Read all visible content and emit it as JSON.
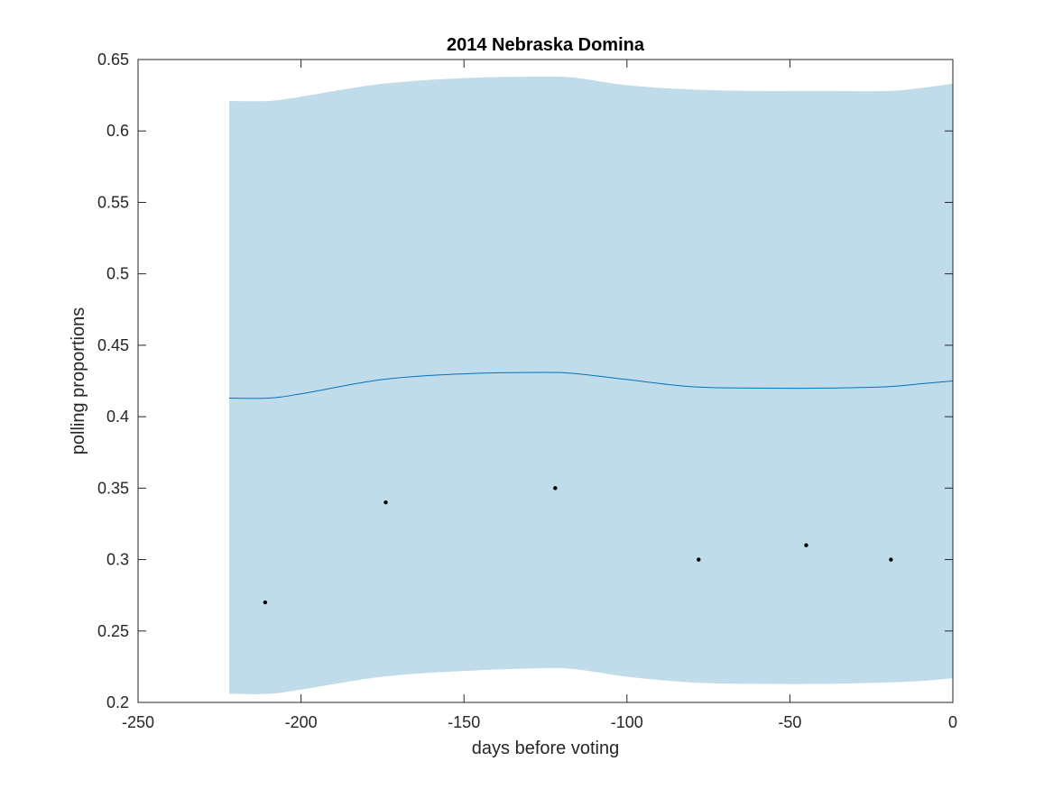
{
  "chart_data": {
    "type": "line",
    "title": "2014 Nebraska Domina",
    "xlabel": "days before voting",
    "ylabel": "polling proportions",
    "xlim": [
      -250,
      0
    ],
    "ylim": [
      0.2,
      0.65
    ],
    "xticks": [
      -250,
      -200,
      -150,
      -100,
      -50,
      0
    ],
    "xtick_labels": [
      "-250",
      "-200",
      "-150",
      "-100",
      "-50",
      "0"
    ],
    "yticks": [
      0.2,
      0.25,
      0.3,
      0.35,
      0.4,
      0.45,
      0.5,
      0.55,
      0.6,
      0.65
    ],
    "ytick_labels": [
      "0.2",
      "0.25",
      "0.3",
      "0.35",
      "0.4",
      "0.45",
      "0.5",
      "0.55",
      "0.6",
      "0.65"
    ],
    "grid": false,
    "series": [
      {
        "kind": "band",
        "color": "#c0dcea",
        "x": [
          -222,
          -210,
          -200,
          -175,
          -150,
          -125,
          -115,
          -100,
          -80,
          -60,
          -40,
          -20,
          -10,
          0
        ],
        "upper": [
          0.621,
          0.621,
          0.624,
          0.633,
          0.637,
          0.638,
          0.637,
          0.632,
          0.629,
          0.628,
          0.628,
          0.628,
          0.63,
          0.633
        ],
        "lower": [
          0.206,
          0.206,
          0.209,
          0.218,
          0.222,
          0.224,
          0.223,
          0.218,
          0.214,
          0.213,
          0.213,
          0.214,
          0.215,
          0.217
        ]
      },
      {
        "kind": "line",
        "color": "#0072bd",
        "x": [
          -222,
          -210,
          -200,
          -175,
          -150,
          -125,
          -115,
          -100,
          -80,
          -60,
          -40,
          -20,
          -10,
          0
        ],
        "y": [
          0.413,
          0.413,
          0.416,
          0.426,
          0.43,
          0.431,
          0.43,
          0.426,
          0.421,
          0.42,
          0.42,
          0.421,
          0.423,
          0.425
        ]
      },
      {
        "kind": "scatter",
        "color": "#000000",
        "x": [
          -211,
          -174,
          -122,
          -78,
          -45,
          -19
        ],
        "y": [
          0.27,
          0.34,
          0.35,
          0.3,
          0.31,
          0.3
        ]
      }
    ]
  }
}
